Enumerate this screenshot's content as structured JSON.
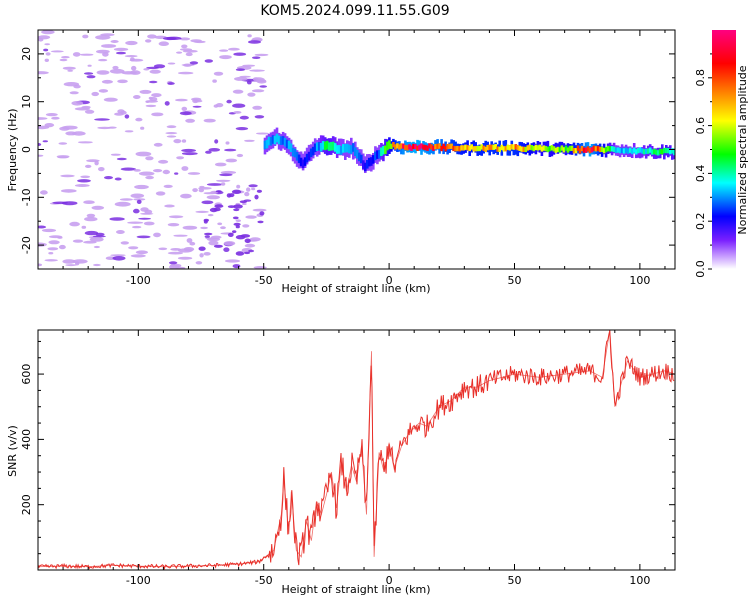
{
  "figure_title": "KOM5.2024.099.11.55.G09",
  "colors": {
    "snr_line": "#e8302a",
    "axis": "#000000",
    "noise_blob": "#c8a0f0",
    "noise_core": "#7a2ee0"
  },
  "chart_data": [
    {
      "type": "heatmap",
      "title": "",
      "xlabel": "Height of straight line (km)",
      "ylabel": "Frequency (Hz)",
      "xlim": [
        -140,
        114
      ],
      "ylim": [
        -25,
        25
      ],
      "x_ticks": [
        -100,
        -50,
        0,
        50,
        100
      ],
      "y_ticks": [
        -20,
        -10,
        0,
        10,
        20
      ],
      "colorbar": {
        "label": "Normalized spectral amplitude",
        "range": [
          0.0,
          1.0
        ],
        "ticks": [
          0.0,
          0.2,
          0.4,
          0.6,
          0.8
        ],
        "colormap": [
          "#ffffff",
          "#7a20ff",
          "#0000ff",
          "#00ffff",
          "#00ff00",
          "#ffff00",
          "#ff8000",
          "#ff0000",
          "#ff0080"
        ]
      },
      "ridge": {
        "x": [
          -50,
          -45,
          -40,
          -35,
          -30,
          -25,
          -20,
          -15,
          -10,
          -5,
          0,
          5,
          10,
          20,
          30,
          40,
          50,
          60,
          70,
          80,
          90,
          100,
          110,
          114
        ],
        "freq": [
          1.0,
          2.5,
          0.5,
          -3.0,
          0.5,
          1.0,
          0.0,
          0.3,
          -3.5,
          -1.0,
          1.0,
          0.5,
          0.5,
          0.5,
          0.3,
          0.3,
          0.3,
          0.2,
          0.0,
          0.0,
          0.0,
          -0.3,
          -0.5,
          -0.5
        ],
        "amplitude": [
          0.3,
          0.3,
          0.3,
          0.2,
          0.25,
          0.45,
          0.3,
          0.3,
          0.2,
          0.25,
          0.6,
          0.85,
          0.9,
          0.8,
          0.65,
          0.7,
          0.7,
          0.55,
          0.55,
          0.9,
          0.3,
          0.35,
          0.45,
          0.4
        ]
      },
      "noise_region": {
        "x_from": -140,
        "x_to": -50
      }
    },
    {
      "type": "line",
      "title": "",
      "xlabel": "Height of straight line (km)",
      "ylabel": "SNR (v/v)",
      "xlim": [
        -140,
        114
      ],
      "ylim": [
        0,
        735
      ],
      "x_ticks": [
        -100,
        -50,
        0,
        50,
        100
      ],
      "y_ticks": [
        200,
        400,
        600
      ],
      "series": [
        {
          "x": [
            -140,
            -130,
            -120,
            -110,
            -100,
            -90,
            -80,
            -70,
            -60,
            -52,
            -46,
            -43,
            -42,
            -40,
            -39,
            -37,
            -35,
            -33,
            -31,
            -29,
            -27,
            -25,
            -23,
            -21,
            -19,
            -17,
            -15,
            -13,
            -11,
            -9,
            -8,
            -7,
            -6,
            -4,
            -2,
            0,
            2,
            5,
            8,
            12,
            15,
            20,
            25,
            30,
            35,
            40,
            50,
            60,
            70,
            80,
            85,
            88,
            90,
            95,
            100,
            105,
            110,
            114
          ],
          "values": [
            10,
            12,
            10,
            14,
            12,
            10,
            12,
            14,
            18,
            25,
            60,
            170,
            280,
            110,
            240,
            60,
            40,
            150,
            90,
            210,
            170,
            230,
            300,
            190,
            330,
            240,
            320,
            270,
            380,
            170,
            440,
            670,
            40,
            360,
            300,
            390,
            310,
            380,
            420,
            450,
            440,
            500,
            520,
            560,
            560,
            580,
            600,
            590,
            600,
            610,
            590,
            735,
            500,
            640,
            590,
            600,
            610,
            600
          ]
        }
      ]
    }
  ]
}
